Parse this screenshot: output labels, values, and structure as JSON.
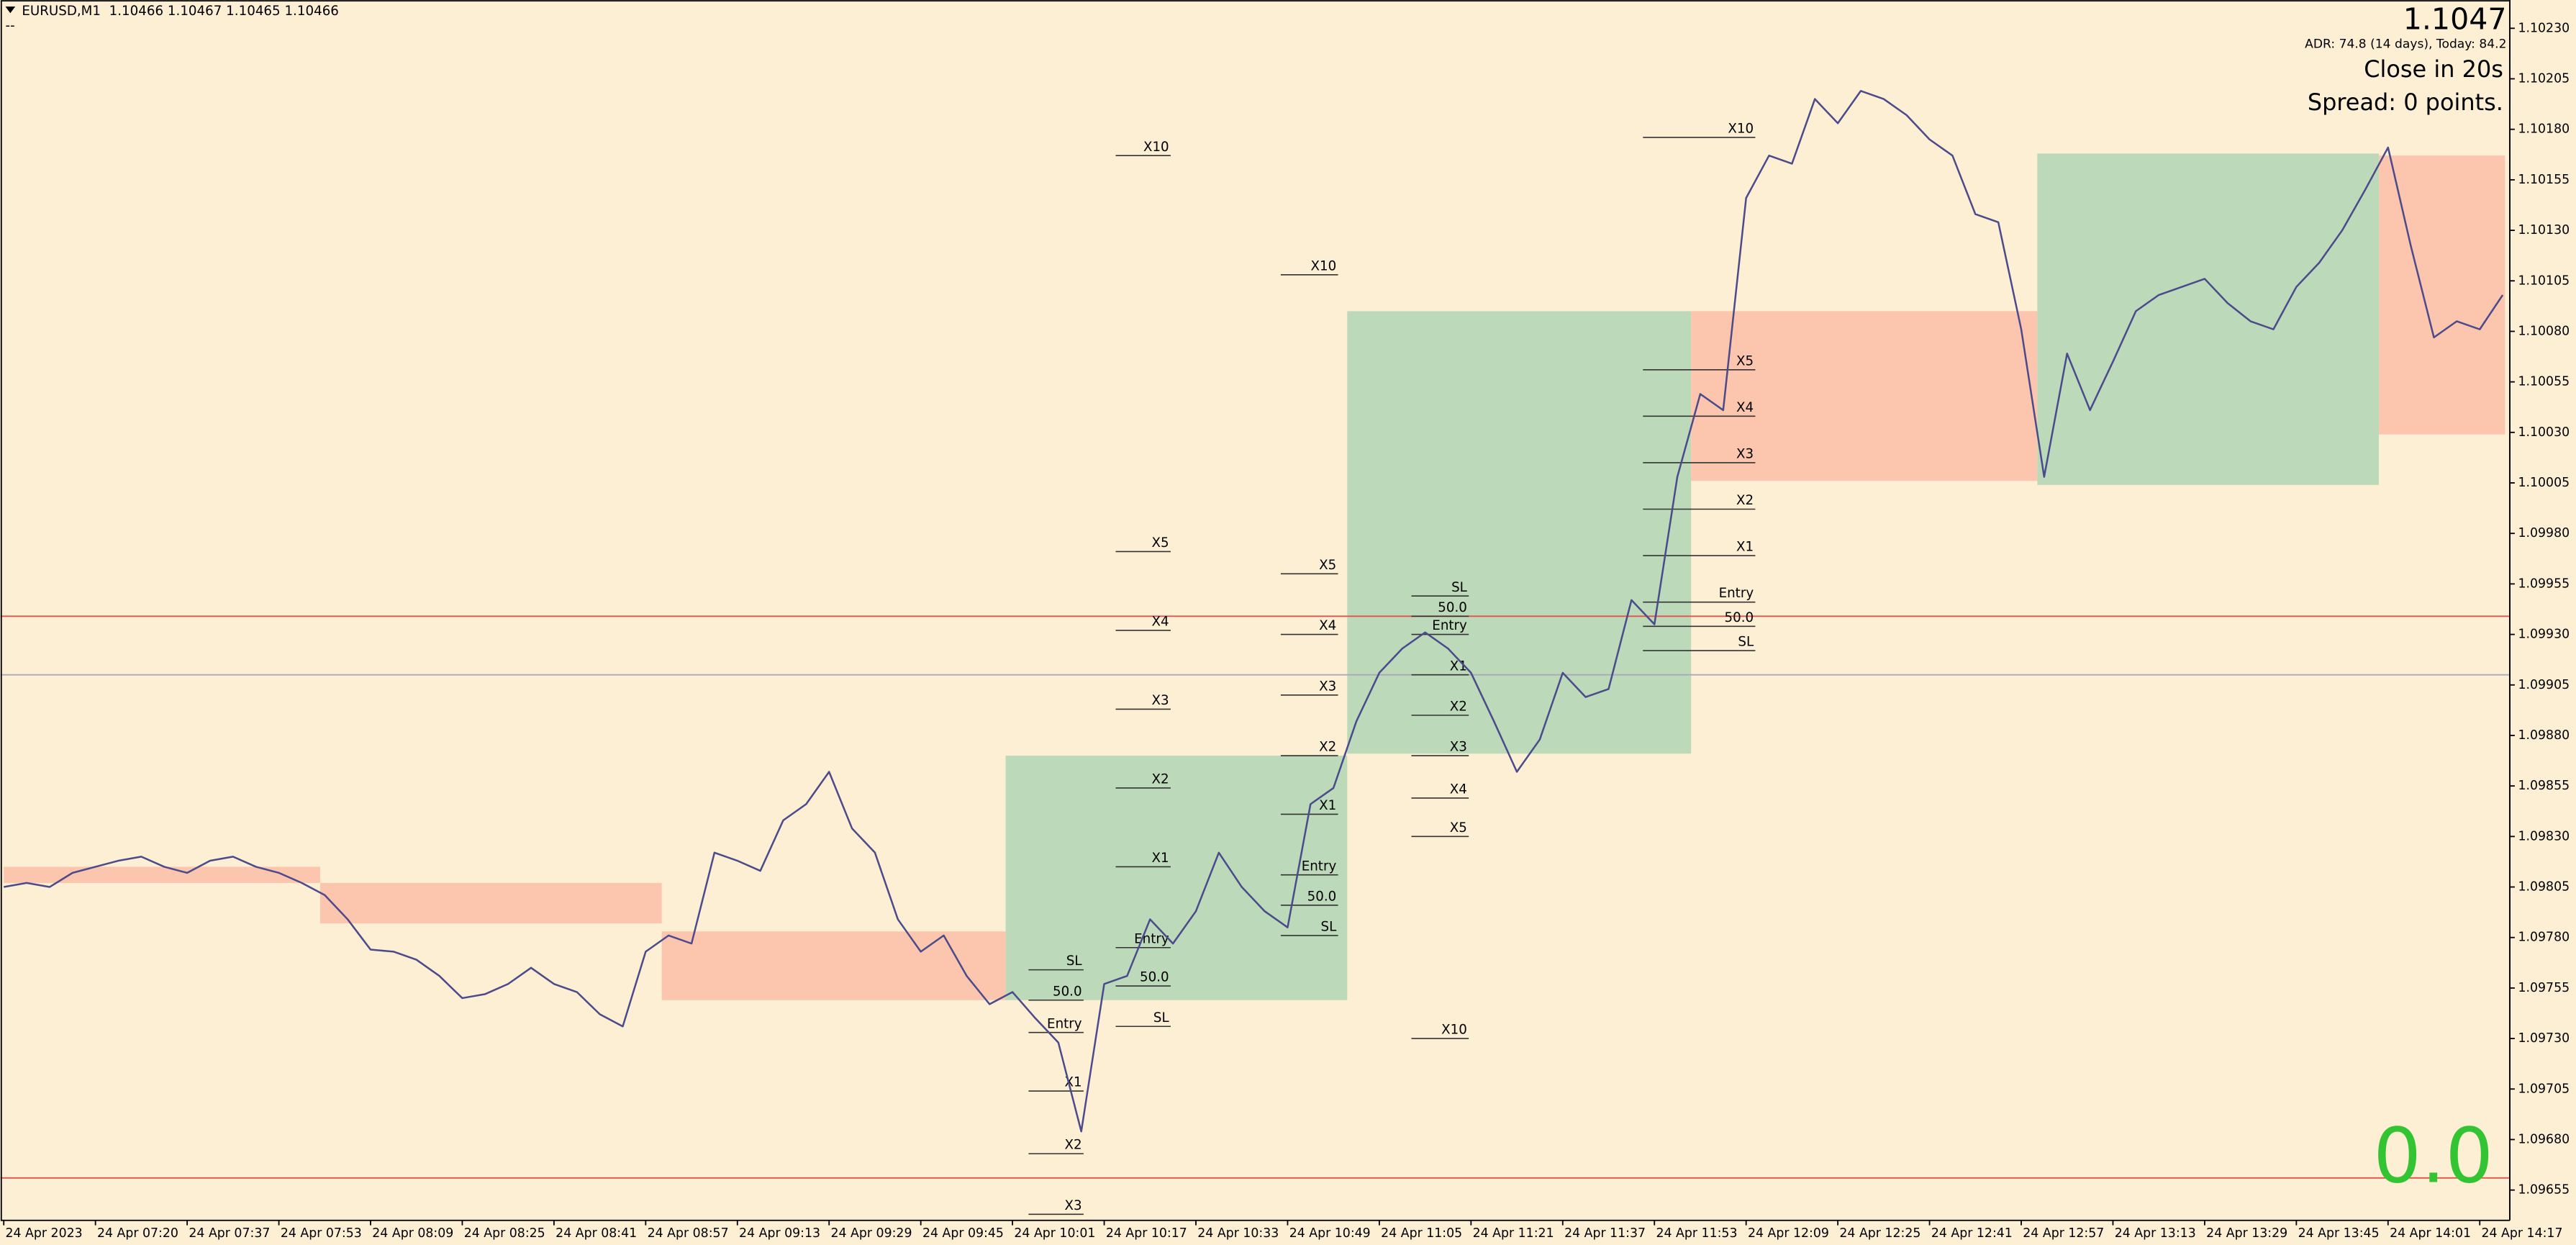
{
  "header": {
    "symbol": "EURUSD,M1  1.10466 1.10467 1.10465 1.10466",
    "sub": "--"
  },
  "info": {
    "price": "1.1047",
    "adr": "ADR: 74.8 (14 days), Today: 84.2",
    "close": "Close in 20s",
    "spread": "Spread: 0 points.",
    "counter": "0.0"
  },
  "chart_data": {
    "type": "line",
    "color": "#4b4b8c",
    "categories": [
      "24 Apr 2023",
      null,
      null,
      null,
      "24 Apr 07:20",
      null,
      null,
      null,
      "24 Apr 07:37",
      null,
      null,
      null,
      "24 Apr 07:53",
      null,
      null,
      null,
      "24 Apr 08:09",
      null,
      null,
      null,
      "24 Apr 08:25",
      null,
      null,
      null,
      "24 Apr 08:41",
      null,
      null,
      null,
      "24 Apr 08:57",
      null,
      null,
      null,
      "24 Apr 09:13",
      null,
      null,
      null,
      "24 Apr 09:29",
      null,
      null,
      null,
      "24 Apr 09:45",
      null,
      null,
      null,
      "24 Apr 10:01",
      null,
      null,
      null,
      "24 Apr 10:17",
      null,
      null,
      null,
      "24 Apr 10:33",
      null,
      null,
      null,
      "24 Apr 10:49",
      null,
      null,
      null,
      "24 Apr 11:05",
      null,
      null,
      null,
      "24 Apr 11:21",
      null,
      null,
      null,
      "24 Apr 11:37",
      null,
      null,
      null,
      "24 Apr 11:53",
      null,
      null,
      null,
      "24 Apr 12:09",
      null,
      null,
      null,
      "24 Apr 12:25",
      null,
      null,
      null,
      "24 Apr 12:41",
      null,
      null,
      null,
      "24 Apr 12:57",
      null,
      null,
      null,
      "24 Apr 13:13",
      null,
      null,
      null,
      "24 Apr 13:29",
      null,
      null,
      null,
      "24 Apr 13:45",
      null,
      null,
      null,
      "24 Apr 14:01",
      null,
      null,
      null,
      "24 Apr 14:17",
      null
    ],
    "values": [
      1.09805,
      1.09807,
      1.09805,
      1.09812,
      1.09815,
      1.09818,
      1.0982,
      1.09815,
      1.09812,
      1.09818,
      1.0982,
      1.09815,
      1.09812,
      1.09807,
      1.09801,
      1.09789,
      1.09774,
      1.09773,
      1.09769,
      1.09761,
      1.0975,
      1.09752,
      1.09757,
      1.09765,
      1.09757,
      1.09753,
      1.09742,
      1.09736,
      1.09773,
      1.09781,
      1.09777,
      1.09822,
      1.09818,
      1.09813,
      1.09838,
      1.09846,
      1.09862,
      1.09834,
      1.09822,
      1.09789,
      1.09773,
      1.09781,
      1.09761,
      1.09747,
      1.09753,
      1.0974,
      1.09728,
      1.09684,
      1.09757,
      1.09761,
      1.09789,
      1.09777,
      1.09793,
      1.09822,
      1.09805,
      1.09793,
      1.09785,
      1.09846,
      1.09854,
      1.09887,
      1.09911,
      1.09923,
      1.09931,
      1.09923,
      1.09911,
      1.09887,
      1.09862,
      1.09878,
      1.09911,
      1.09899,
      1.09903,
      1.09947,
      1.09935,
      1.10008,
      1.10049,
      1.10041,
      1.10146,
      1.10167,
      1.10163,
      1.10195,
      1.10183,
      1.10199,
      1.10195,
      1.10187,
      1.10175,
      1.10167,
      1.10138,
      1.10134,
      1.10081,
      1.10008,
      1.10069,
      1.10041,
      1.10065,
      1.1009,
      1.10098,
      1.10102,
      1.10106,
      1.10094,
      1.10085,
      1.10081,
      1.10102,
      1.10114,
      1.1013,
      1.1015,
      1.10171,
      1.10122,
      1.10077,
      1.10085,
      1.10081,
      1.10098
    ],
    "ylim": [
      1.0964,
      1.10244
    ],
    "yticks": [
      {
        "value": 1.1023,
        "label": "1.10230"
      },
      1.10205,
      {
        "value": 1.1018,
        "label": "1.10180"
      },
      1.10155,
      {
        "value": 1.1013,
        "label": "1.10130"
      },
      1.10105,
      {
        "value": 1.1008,
        "label": "1.10080"
      },
      1.10055,
      {
        "value": 1.1003,
        "label": "1.10030"
      },
      1.10005,
      {
        "value": 1.0998,
        "label": "1.09980"
      },
      1.09955,
      {
        "value": 1.0993,
        "label": "1.09930"
      },
      1.09905,
      {
        "value": 1.0988,
        "label": "1.09880"
      },
      1.09855,
      {
        "value": 1.0983,
        "label": "1.09830"
      },
      1.09805,
      {
        "value": 1.0978,
        "label": "1.09780"
      },
      1.09755,
      {
        "value": 1.0973,
        "label": "1.09730"
      },
      1.09705,
      {
        "value": 1.0968,
        "label": "1.09680"
      },
      1.09655
    ],
    "zones": [
      {
        "x": [
          0,
          13.8
        ],
        "y": [
          1.09815,
          1.09807
        ],
        "color": "#fcc5ad"
      },
      {
        "x": [
          13.8,
          28.7
        ],
        "y": [
          1.09807,
          1.09787
        ],
        "color": "#fcc5ad"
      },
      {
        "x": [
          28.7,
          43.7
        ],
        "y": [
          1.09783,
          1.09749
        ],
        "color": "#fcc5ad"
      },
      {
        "x": [
          43.7,
          58.6
        ],
        "y": [
          1.0987,
          1.09749
        ],
        "color": "#bcd9b9"
      },
      {
        "x": [
          58.6,
          73.6
        ],
        "y": [
          1.1009,
          1.09871
        ],
        "color": "#bcd9b9"
      },
      {
        "x": [
          73.6,
          88.7
        ],
        "y": [
          1.1009,
          1.10006
        ],
        "color": "#fcc5ad"
      },
      {
        "x": [
          88.7,
          103.6
        ],
        "y": [
          1.10168,
          1.10004
        ],
        "color": "#bcd9b9"
      },
      {
        "x": [
          103.6,
          109.1
        ],
        "y": [
          1.10167,
          1.10029
        ],
        "color": "#fcc5ad"
      }
    ],
    "hlines": [
      {
        "value": 1.09939,
        "color": "#e8524a"
      },
      {
        "value": 1.0991,
        "color": "#a8aab8"
      },
      {
        "value": 1.09661,
        "color": "#e8524a"
      }
    ],
    "levels": [
      {
        "x": [
          48.5,
          50.9
        ],
        "items": [
          {
            "label": "X10",
            "value": 1.10167
          },
          {
            "label": "X5",
            "value": 1.09971
          },
          {
            "label": "X4",
            "value": 1.09932
          },
          {
            "label": "X3",
            "value": 1.09893
          },
          {
            "label": "X2",
            "value": 1.09854
          },
          {
            "label": "X1",
            "value": 1.09815
          },
          {
            "label": "Entry",
            "value": 1.09775
          },
          {
            "label": "50.0",
            "value": 1.09756
          },
          {
            "label": "SL",
            "value": 1.09736
          }
        ]
      },
      {
        "x": [
          55.7,
          58.2
        ],
        "items": [
          {
            "label": "X10",
            "value": 1.10108
          },
          {
            "label": "X5",
            "value": 1.0996
          },
          {
            "label": "X4",
            "value": 1.0993
          },
          {
            "label": "X3",
            "value": 1.099
          },
          {
            "label": "X2",
            "value": 1.0987
          },
          {
            "label": "X1",
            "value": 1.09841
          },
          {
            "label": "Entry",
            "value": 1.09811
          },
          {
            "label": "50.0",
            "value": 1.09796
          },
          {
            "label": "SL",
            "value": 1.09781
          }
        ]
      },
      {
        "x": [
          61.4,
          63.9
        ],
        "items": [
          {
            "label": "SL",
            "value": 1.09949
          },
          {
            "label": "50.0",
            "value": 1.09939
          },
          {
            "label": "Entry",
            "value": 1.0993
          },
          {
            "label": "X1",
            "value": 1.0991
          },
          {
            "label": "X2",
            "value": 1.0989
          },
          {
            "label": "X3",
            "value": 1.0987
          },
          {
            "label": "X4",
            "value": 1.09849
          },
          {
            "label": "X5",
            "value": 1.0983
          },
          {
            "label": "X10",
            "value": 1.0973
          }
        ]
      },
      {
        "x": [
          71.5,
          76.4
        ],
        "items": [
          {
            "label": "X10",
            "value": 1.10176
          },
          {
            "label": "X5",
            "value": 1.10061
          },
          {
            "label": "X4",
            "value": 1.10038
          },
          {
            "label": "X3",
            "value": 1.10015
          },
          {
            "label": "X2",
            "value": 1.09992
          },
          {
            "label": "X1",
            "value": 1.09969
          },
          {
            "label": "Entry",
            "value": 1.09946
          },
          {
            "label": "50.0",
            "value": 1.09934
          },
          {
            "label": "SL",
            "value": 1.09922
          }
        ]
      },
      {
        "x": [
          44.7,
          47.1
        ],
        "items": [
          {
            "label": "SL",
            "value": 1.09764
          },
          {
            "label": "50.0",
            "value": 1.09749
          },
          {
            "label": "Entry",
            "value": 1.09733
          },
          {
            "label": "X1",
            "value": 1.09704
          },
          {
            "label": "X2",
            "value": 1.09673
          },
          {
            "label": "X3",
            "value": 1.09643
          }
        ]
      }
    ]
  }
}
